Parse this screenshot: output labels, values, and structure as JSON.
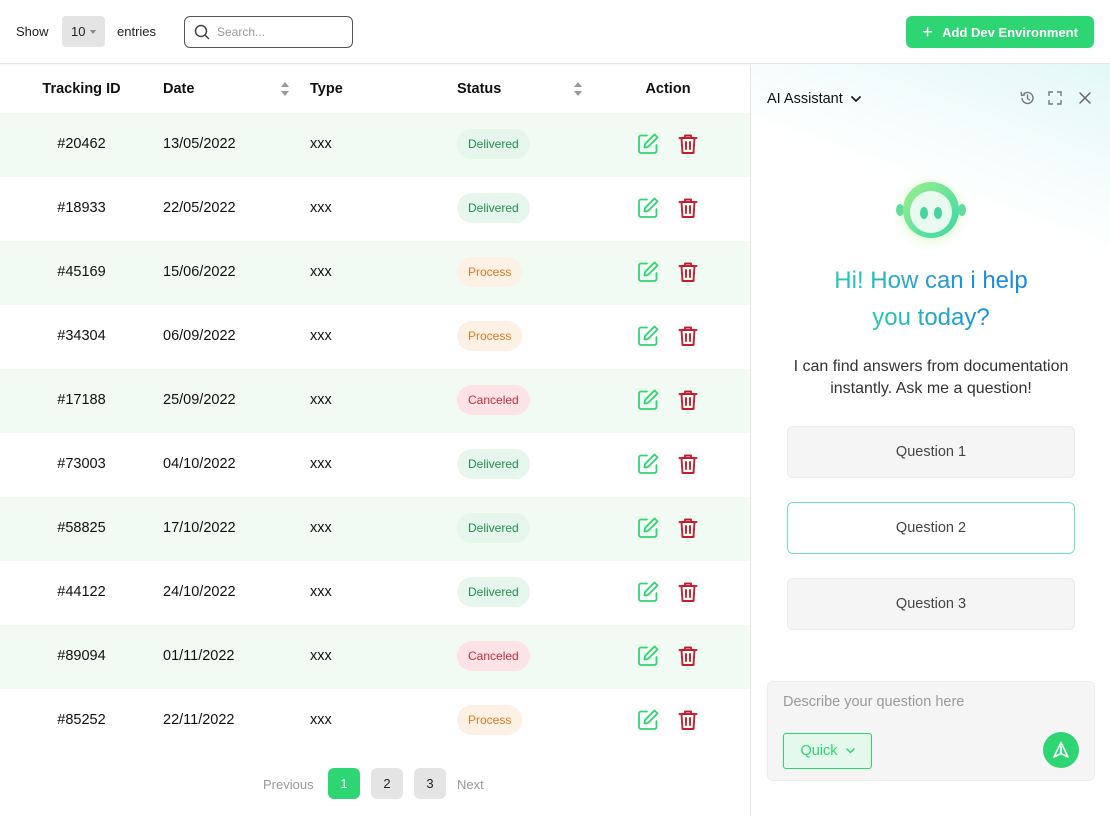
{
  "toolbar": {
    "show_label": "Show",
    "entries_value": "10",
    "entries_label": "entries",
    "search_placeholder": "Search...",
    "add_button_label": "Add Dev Environment"
  },
  "table": {
    "headers": {
      "tracking_id": "Tracking ID",
      "date": "Date",
      "type": "Type",
      "status": "Status",
      "action": "Action"
    },
    "rows": [
      {
        "id": "#20462",
        "date": "13/05/2022",
        "type": "xxx",
        "status": "Delivered"
      },
      {
        "id": "#18933",
        "date": "22/05/2022",
        "type": "xxx",
        "status": "Delivered"
      },
      {
        "id": "#45169",
        "date": "15/06/2022",
        "type": "xxx",
        "status": "Process"
      },
      {
        "id": "#34304",
        "date": "06/09/2022",
        "type": "xxx",
        "status": "Process"
      },
      {
        "id": "#17188",
        "date": "25/09/2022",
        "type": "xxx",
        "status": "Canceled"
      },
      {
        "id": "#73003",
        "date": "04/10/2022",
        "type": "xxx",
        "status": "Delivered"
      },
      {
        "id": "#58825",
        "date": "17/10/2022",
        "type": "xxx",
        "status": "Delivered"
      },
      {
        "id": "#44122",
        "date": "24/10/2022",
        "type": "xxx",
        "status": "Delivered"
      },
      {
        "id": "#89094",
        "date": "01/11/2022",
        "type": "xxx",
        "status": "Canceled"
      },
      {
        "id": "#85252",
        "date": "22/11/2022",
        "type": "xxx",
        "status": "Process"
      }
    ]
  },
  "pagination": {
    "previous": "Previous",
    "pages": [
      "1",
      "2",
      "3"
    ],
    "current": "1",
    "next": "Next"
  },
  "assistant": {
    "title": "AI Assistant",
    "greeting_line1_a": "Hi! How can i ",
    "greeting_line1_b": "help",
    "greeting_line2": "you today?",
    "description": "I can find answers from documentation instantly. Ask me a question!",
    "questions": [
      "Question 1",
      "Question 2",
      "Question 3"
    ],
    "selected_question": "Question 2",
    "input_placeholder": "Describe your question here",
    "quick_label": "Quick"
  },
  "colors": {
    "brand_green": "#2ed573",
    "row_alt": "#f1fbf4",
    "delivered_text": "#1f8f4e",
    "process_text": "#e07b22",
    "canceled_text": "#c62d3a",
    "edit_icon": "#2ed573",
    "delete_icon": "#c0202e"
  }
}
